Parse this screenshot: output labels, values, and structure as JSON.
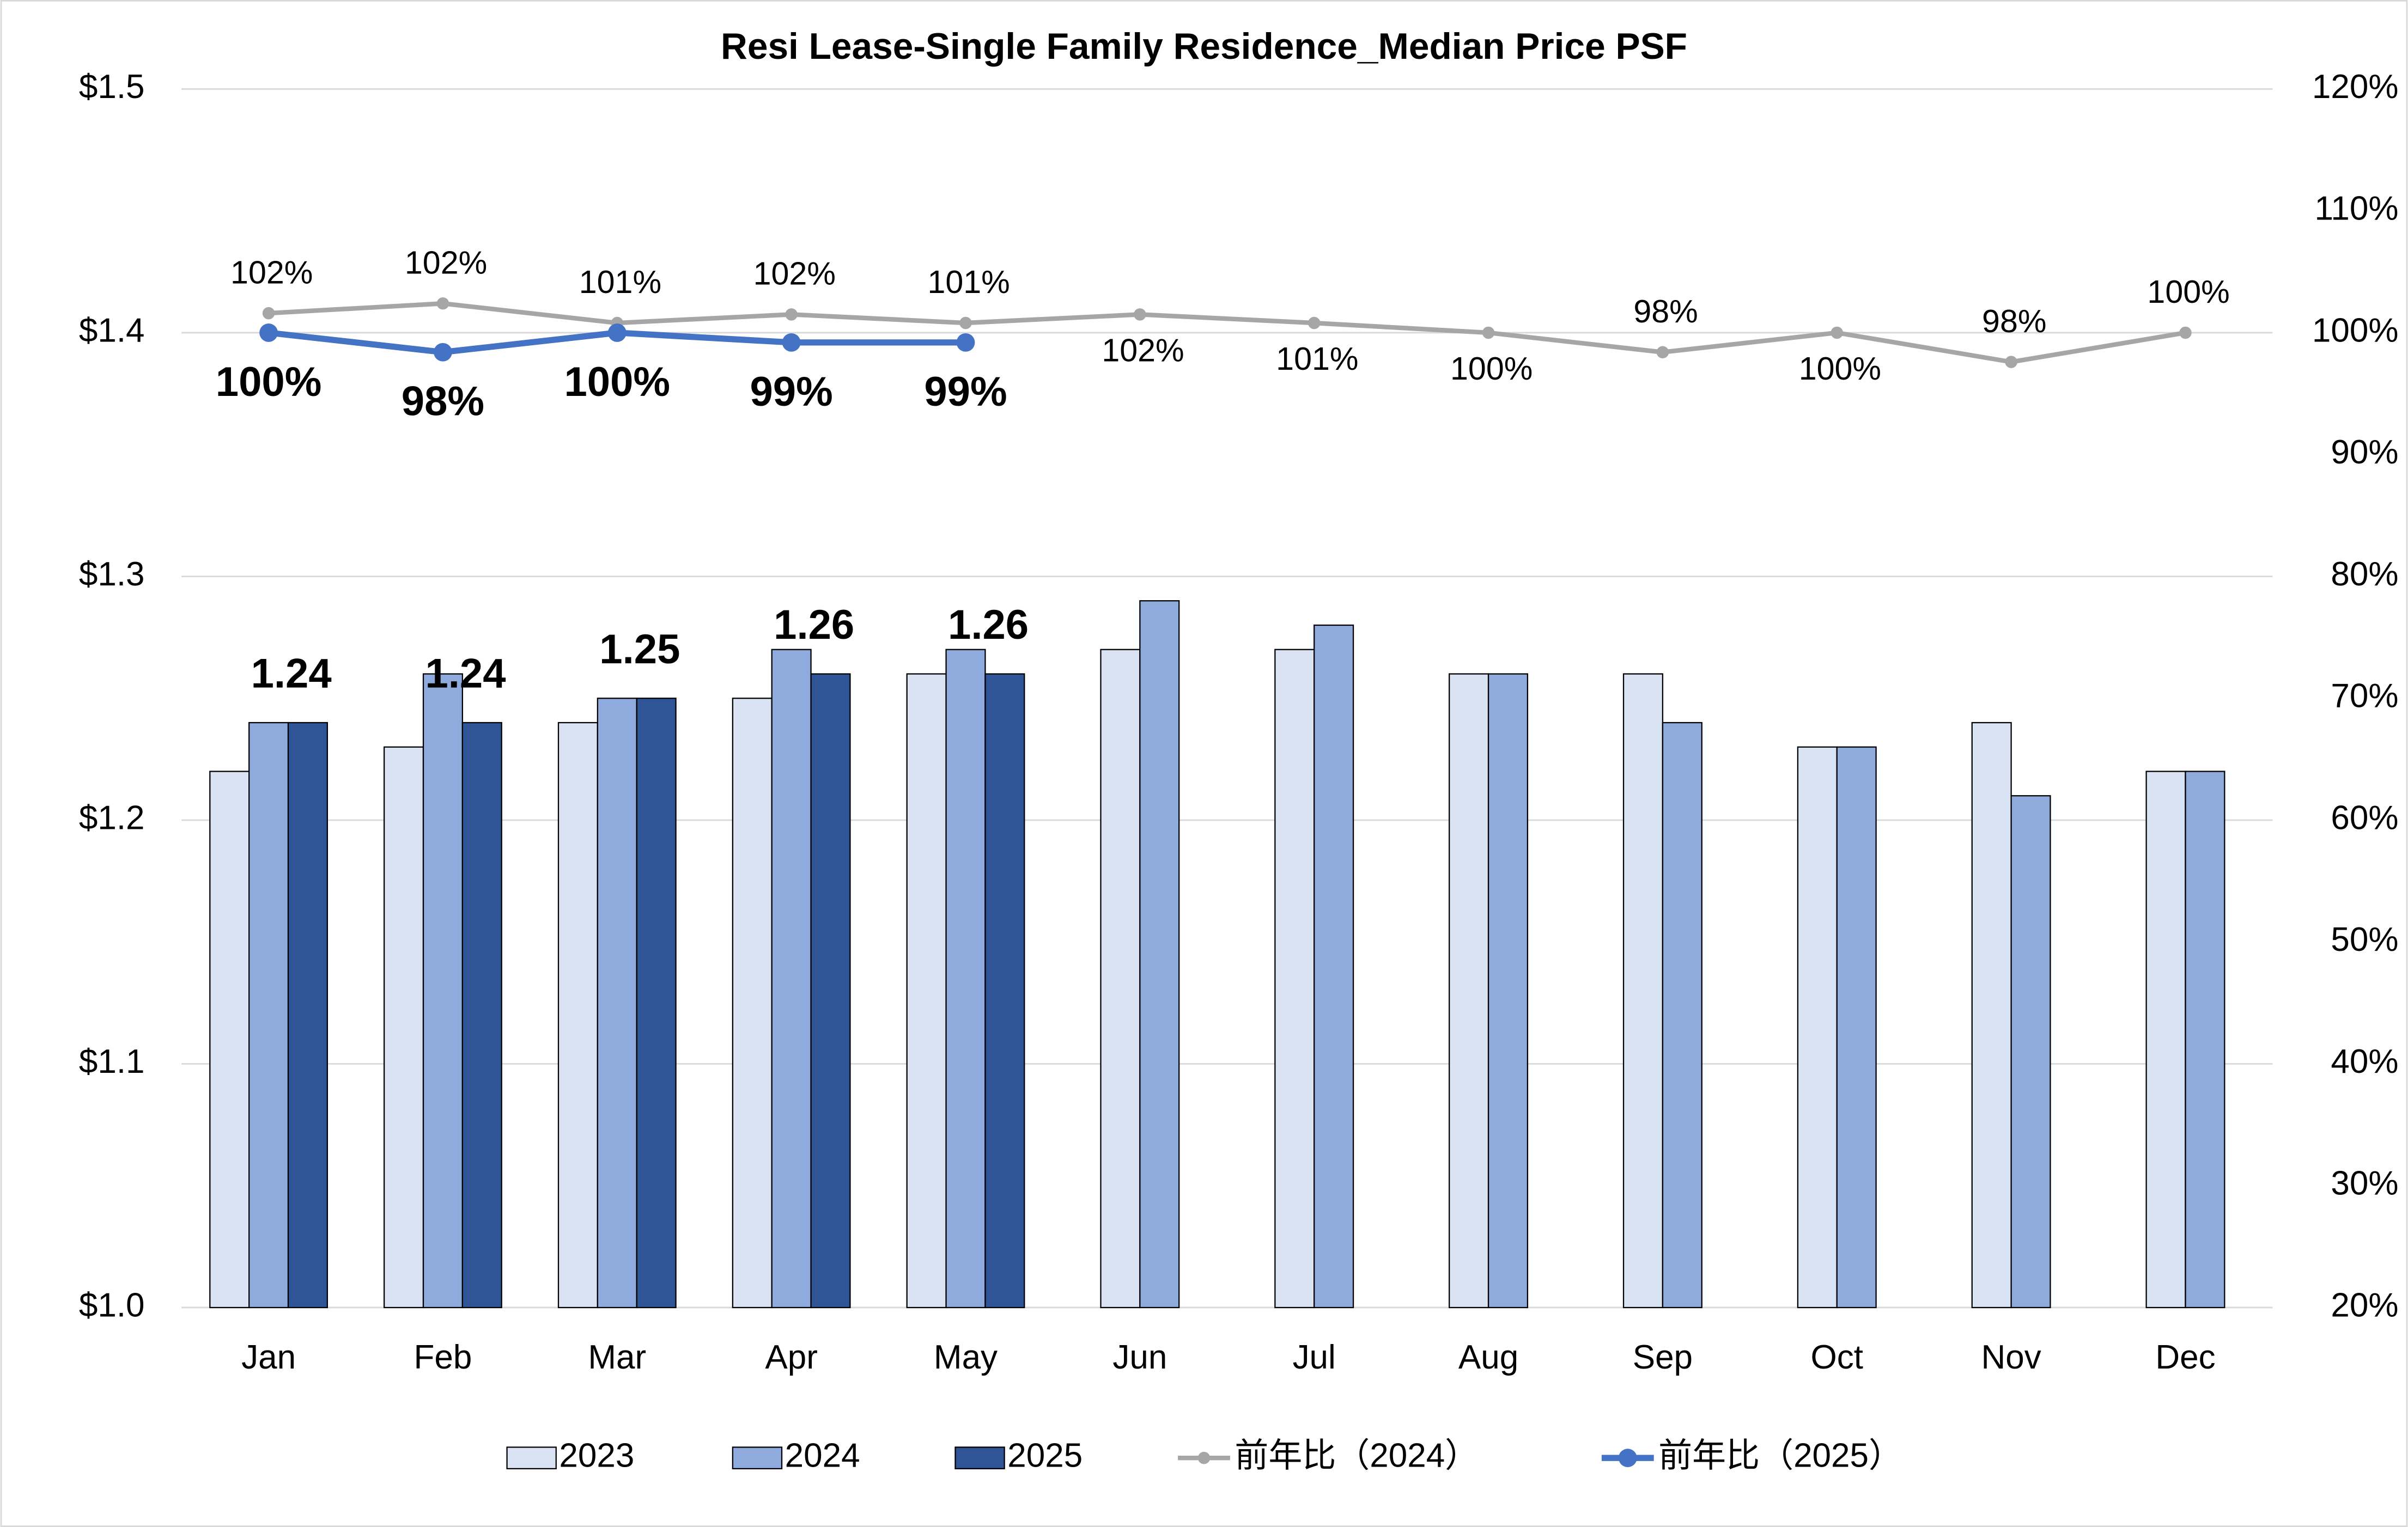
{
  "chart_data": {
    "type": "bar",
    "title": "Resi Lease-Single Family Residence_Median Price PSF",
    "categories": [
      "Jan",
      "Feb",
      "Mar",
      "Apr",
      "May",
      "Jun",
      "Jul",
      "Aug",
      "Sep",
      "Oct",
      "Nov",
      "Dec"
    ],
    "series": [
      {
        "name": "2023",
        "type": "bar",
        "color": "#dae3f3",
        "values": [
          1.22,
          1.23,
          1.24,
          1.25,
          1.26,
          1.27,
          1.27,
          1.26,
          1.26,
          1.23,
          1.24,
          1.22
        ]
      },
      {
        "name": "2024",
        "type": "bar",
        "color": "#8faadc",
        "values": [
          1.24,
          1.26,
          1.25,
          1.27,
          1.27,
          1.29,
          1.28,
          1.26,
          1.24,
          1.23,
          1.21,
          1.22
        ]
      },
      {
        "name": "2025",
        "type": "bar",
        "color": "#2f5597",
        "data_labels": true,
        "values": [
          1.24,
          1.24,
          1.25,
          1.26,
          1.26,
          null,
          null,
          null,
          null,
          null,
          null,
          null
        ]
      },
      {
        "name": "前年比（2024）",
        "type": "line",
        "axis": "y2",
        "color": "#a6a6a6",
        "values": [
          101.6,
          102.4,
          100.8,
          101.5,
          100.8,
          101.5,
          100.8,
          100,
          98.4,
          100,
          97.6,
          100
        ],
        "value_labels": [
          "102%",
          "102%",
          "101%",
          "102%",
          "101%",
          "102%",
          "101%",
          "100%",
          "98%",
          "100%",
          "98%",
          "100%"
        ]
      },
      {
        "name": "前年比（2025）",
        "type": "line",
        "axis": "y2",
        "color": "#4472c4",
        "values": [
          100,
          98.4,
          100,
          99.2,
          99.2,
          null,
          null,
          null,
          null,
          null,
          null,
          null
        ],
        "value_labels": [
          "100%",
          "98%",
          "100%",
          "99%",
          "99%",
          null,
          null,
          null,
          null,
          null,
          null,
          null
        ]
      }
    ],
    "ylim": [
      1.0,
      1.5
    ],
    "yticks": [
      {
        "value": 1.0,
        "label": "$1.0"
      },
      {
        "value": 1.1,
        "label": "$1.1"
      },
      {
        "value": 1.2,
        "label": "$1.2"
      },
      {
        "value": 1.3,
        "label": "$1.3"
      },
      {
        "value": 1.4,
        "label": "$1.4"
      },
      {
        "value": 1.5,
        "label": "$1.5"
      }
    ],
    "y2lim": [
      20,
      120
    ],
    "y2ticks": [
      {
        "value": 20,
        "label": "20%"
      },
      {
        "value": 30,
        "label": "30%"
      },
      {
        "value": 40,
        "label": "40%"
      },
      {
        "value": 50,
        "label": "50%"
      },
      {
        "value": 60,
        "label": "60%"
      },
      {
        "value": 70,
        "label": "70%"
      },
      {
        "value": 80,
        "label": "80%"
      },
      {
        "value": 90,
        "label": "90%"
      },
      {
        "value": 100,
        "label": "100%"
      },
      {
        "value": 110,
        "label": "110%"
      },
      {
        "value": 120,
        "label": "120%"
      }
    ],
    "grid": true,
    "legend": "bottom"
  }
}
